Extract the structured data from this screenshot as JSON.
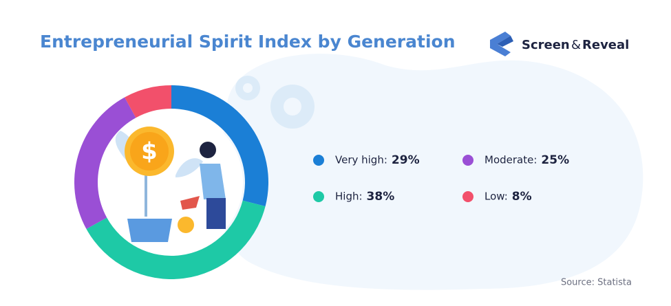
{
  "chart_data": {
    "type": "donut",
    "title": "Entrepreneurial Spirit Index by Generation",
    "categories": [
      "Very high:",
      "High:",
      "Moderate:",
      "Low:"
    ],
    "values": [
      29,
      38,
      25,
      8
    ],
    "value_labels": [
      "29%",
      "38%",
      "25%",
      "8%"
    ],
    "colors": [
      "#1b7fd6",
      "#1ec9a6",
      "#9a4fd5",
      "#f2506b"
    ],
    "source": "Source: Statista"
  },
  "brand": [
    "Screen",
    "&",
    "Reveal"
  ]
}
